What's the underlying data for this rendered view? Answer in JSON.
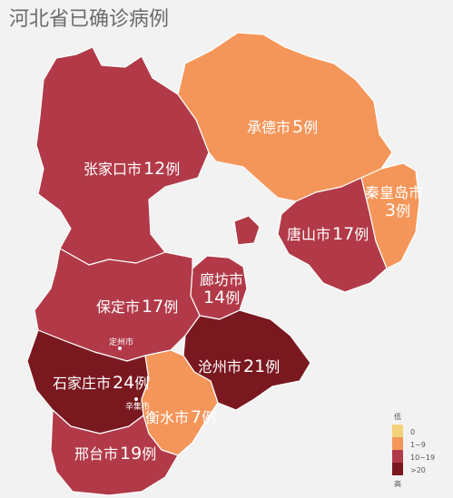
{
  "title": "河北省已确诊病例",
  "colors": {
    "background": "#f2f2f2",
    "tier_0": "#f2d27a",
    "tier_1_9": "#f4965a",
    "tier_10_19": "#b23a48",
    "tier_20_plus": "#7a1820",
    "border": "#ffffff"
  },
  "regions": [
    {
      "id": "zhangjiakou",
      "name": "张家口市",
      "count": "12",
      "unit": "例",
      "tier": "tier_10_19"
    },
    {
      "id": "chengde",
      "name": "承德市",
      "count": "5",
      "unit": "例",
      "tier": "tier_1_9"
    },
    {
      "id": "qinhuangdao",
      "name": "秦皇岛市",
      "count": "3",
      "unit": "例",
      "tier": "tier_1_9"
    },
    {
      "id": "tangshan",
      "name": "唐山市",
      "count": "17",
      "unit": "例",
      "tier": "tier_10_19"
    },
    {
      "id": "langfang",
      "name": "廊坊市",
      "count": "14",
      "unit": "例",
      "tier": "tier_10_19"
    },
    {
      "id": "baoding",
      "name": "保定市",
      "count": "17",
      "unit": "例",
      "tier": "tier_10_19"
    },
    {
      "id": "cangzhou",
      "name": "沧州市",
      "count": "21",
      "unit": "例",
      "tier": "tier_20_plus"
    },
    {
      "id": "shijiazhuang",
      "name": "石家庄市",
      "count": "24",
      "unit": "例",
      "tier": "tier_20_plus"
    },
    {
      "id": "hengshui",
      "name": "衡水市",
      "count": "7",
      "unit": "例",
      "tier": "tier_1_9"
    },
    {
      "id": "xingtai",
      "name": "邢台市",
      "count": "19",
      "unit": "例",
      "tier": "tier_10_19"
    }
  ],
  "county_labels": [
    {
      "id": "dingzhou",
      "name": "定州市"
    },
    {
      "id": "xinji",
      "name": "辛集市"
    }
  ],
  "legend": {
    "low_label": "低",
    "high_label": "高",
    "items": [
      {
        "label": "0",
        "tier": "tier_0"
      },
      {
        "label": "1~9",
        "tier": "tier_1_9"
      },
      {
        "label": "10~19",
        "tier": "tier_10_19"
      },
      {
        "label": ">20",
        "tier": "tier_20_plus"
      }
    ]
  }
}
